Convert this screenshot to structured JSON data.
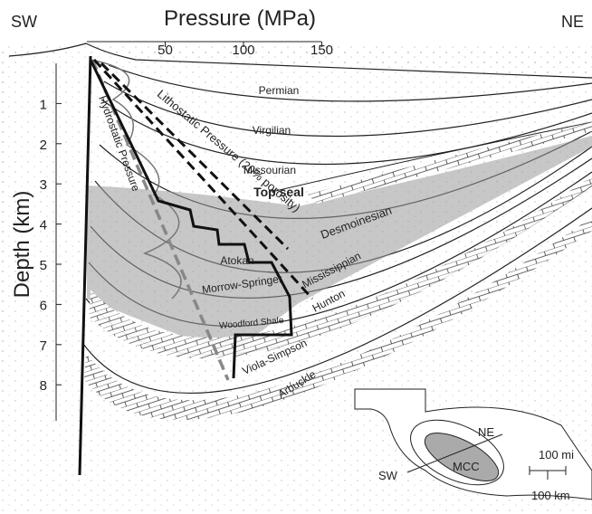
{
  "header": {
    "left": "SW",
    "right": "NE"
  },
  "x_axis": {
    "title": "Pressure (MPa)",
    "ticks": [
      50,
      100,
      150
    ]
  },
  "y_axis": {
    "title": "Depth (km)",
    "ticks": [
      1,
      2,
      3,
      4,
      5,
      6,
      7,
      8
    ]
  },
  "labels": [
    "Permian",
    "Virgilian",
    "Missourian",
    "Top seal",
    "Lithostatic Pressure (20% porosity)",
    "Hydrostatic Pressure",
    "Desmoinesian",
    "Atokan",
    "Morrow-Springer",
    "Mississippian",
    "Hunton",
    "Woodford Shale",
    "Viola-Simpson",
    "Arbuckle"
  ],
  "inset": {
    "ne": "NE",
    "sw": "SW",
    "basin": "MCC",
    "scale_mi": "100 mi",
    "scale_km": "100 km"
  }
}
